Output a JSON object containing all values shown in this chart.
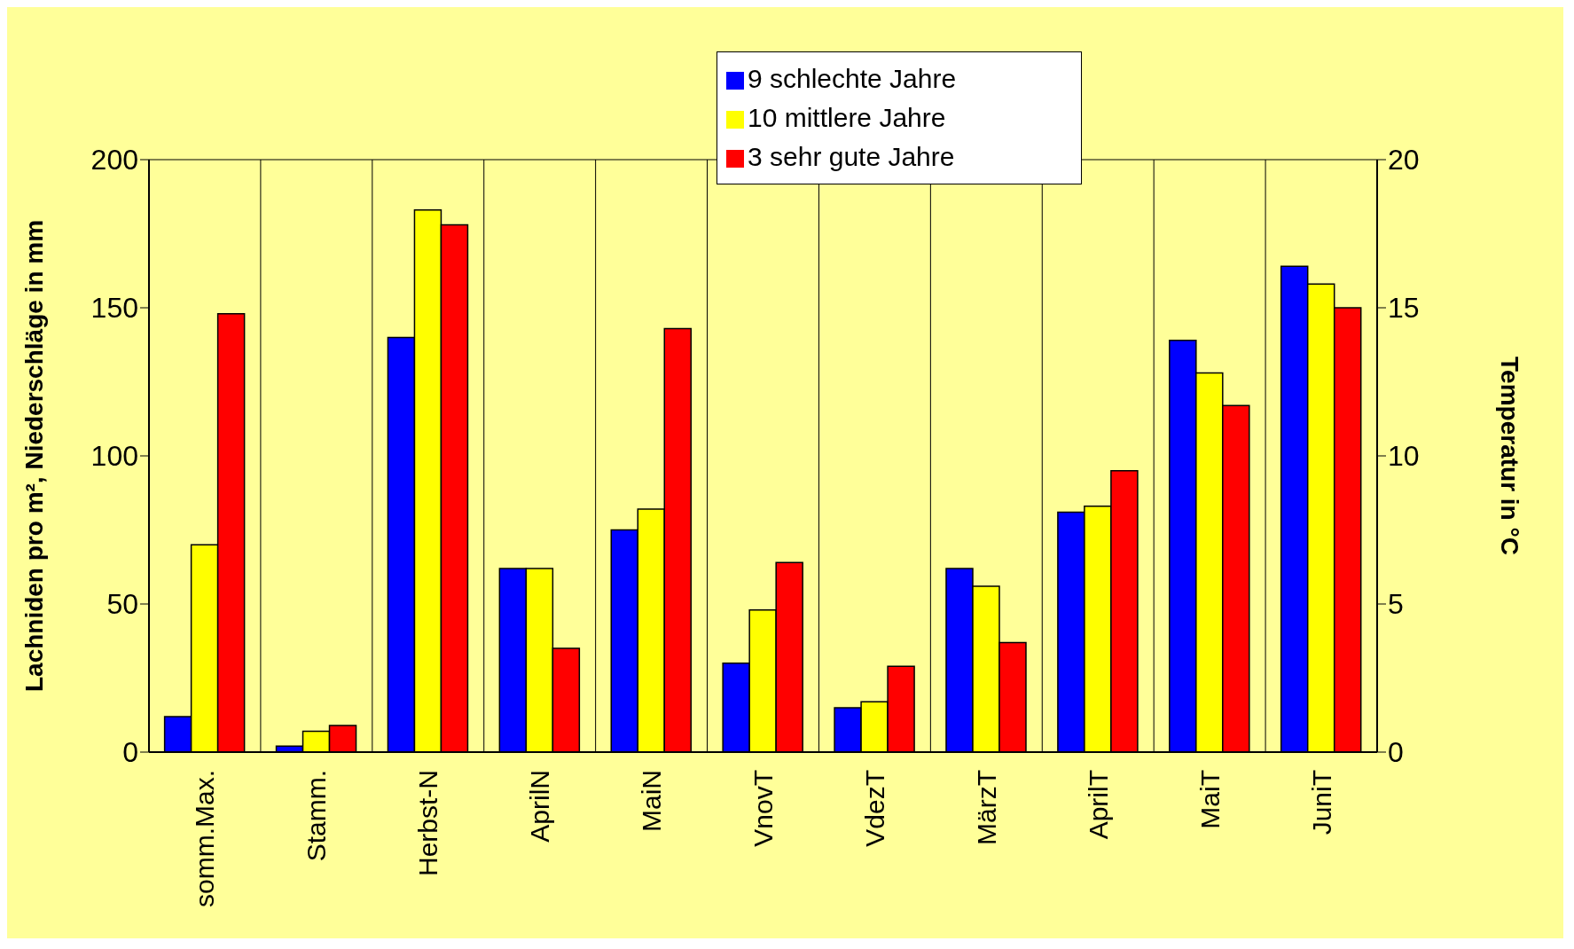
{
  "chart_data": {
    "type": "bar",
    "ylabel": "Lachniden pro m², Niederschläge in mm",
    "y2label": "Temperatur  in °C",
    "categories": [
      "somm.Max.",
      "Stamm.",
      "Herbst-N",
      "AprilN",
      "MaiN",
      "VnovT",
      "VdezT",
      "MärzT",
      "AprilT",
      "MaiT",
      "JuniT"
    ],
    "series": [
      {
        "name": "9 schlechte Jahre",
        "color": "#0000ff",
        "values": [
          12,
          2,
          140,
          62,
          75,
          30,
          15,
          62,
          81,
          139,
          164
        ]
      },
      {
        "name": "10 mittlere Jahre",
        "color": "#ffff00",
        "values": [
          70,
          7,
          183,
          62,
          82,
          48,
          17,
          56,
          83,
          128,
          158
        ]
      },
      {
        "name": "3 sehr gute Jahre",
        "color": "#ff0000",
        "values": [
          148,
          9,
          178,
          35,
          143,
          64,
          29,
          37,
          95,
          117,
          150
        ]
      }
    ],
    "ylim": [
      0,
      200
    ],
    "yticks": [
      0,
      50,
      100,
      150,
      200
    ],
    "y2lim": [
      0,
      20
    ],
    "y2ticks": [
      0,
      5,
      10,
      15,
      20
    ],
    "grid": true,
    "legend": "top"
  }
}
